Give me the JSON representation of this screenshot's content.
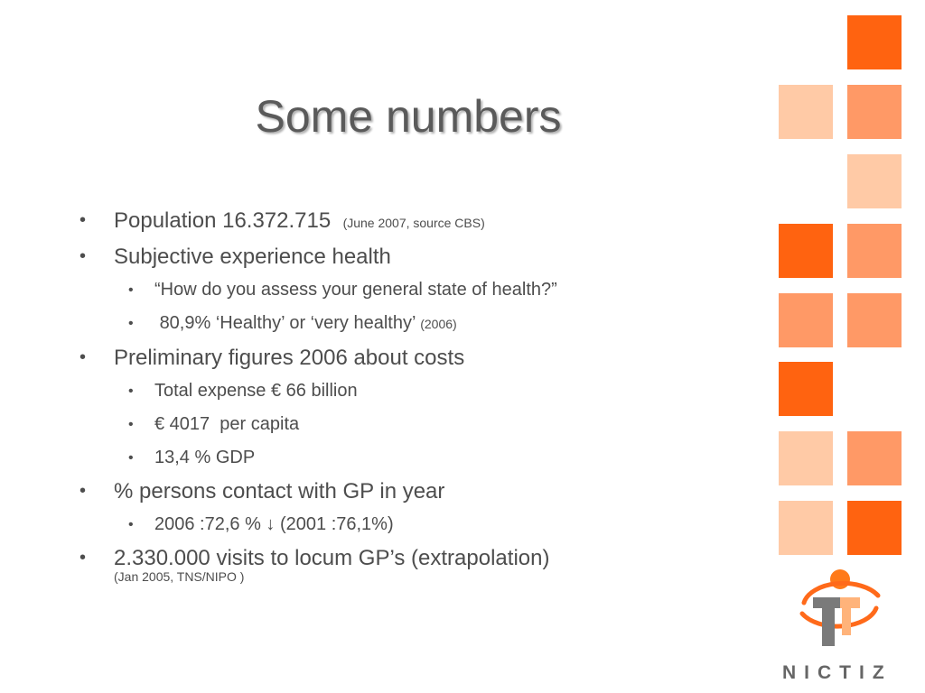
{
  "slide": {
    "title": "Some numbers",
    "bullets": {
      "b1": {
        "text": "Population 16.372.715",
        "note": "(June 2007, source CBS)"
      },
      "b2": {
        "text": "Subjective experience health"
      },
      "b2a": {
        "text": "“How do you assess your general state of health?”"
      },
      "b2b": {
        "text": "80,9% ‘Healthy’ or ‘very healthy’",
        "note": "(2006)"
      },
      "b3": {
        "text": "Preliminary figures 2006 about costs"
      },
      "b3a": {
        "text": "Total expense € 66 billion"
      },
      "b3b": {
        "text": "€ 4017  per capita"
      },
      "b3c": {
        "text": "13,4 % GDP"
      },
      "b4": {
        "text": "% persons contact with GP in year"
      },
      "b4a": {
        "text": "2006 :72,6 % ↓ (2001 :76,1%)"
      },
      "b5": {
        "text": "2.330.000 visits to locum GP’s (extrapolation)",
        "note": "(Jan 2005, TNS/NIPO )"
      }
    },
    "bullet_glyph": "•",
    "brand": "NICTIZ",
    "colors": {
      "accent_dark": "#ff6310",
      "accent_mid": "#ff9966",
      "accent_light": "#ffcaa6",
      "logo_gray": "#7a7a7a"
    },
    "icons": {
      "logo": "nictiz-logo-icon"
    }
  }
}
